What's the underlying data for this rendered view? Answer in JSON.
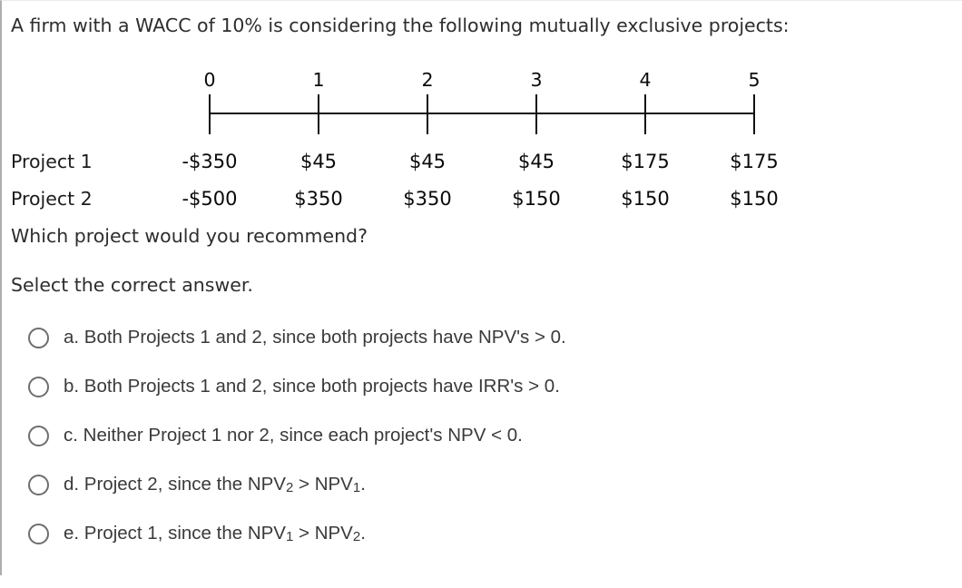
{
  "question": {
    "intro": "A firm with a WACC of 10% is considering the following mutually exclusive projects:",
    "prompt": "Which project would you recommend?",
    "instruction": "Select the correct answer."
  },
  "timeline": {
    "periods": [
      "0",
      "1",
      "2",
      "3",
      "4",
      "5"
    ]
  },
  "cashflows": {
    "rows": [
      {
        "label": "Project 1",
        "values": [
          "-$350",
          "$45",
          "$45",
          "$45",
          "$175",
          "$175"
        ]
      },
      {
        "label": "Project 2",
        "values": [
          "-$500",
          "$350",
          "$350",
          "$150",
          "$150",
          "$150"
        ]
      }
    ]
  },
  "options": [
    {
      "id": "a",
      "selected": false,
      "segments": [
        {
          "text": "a. Both Projects 1 and 2, since both projects have NPV's > 0."
        }
      ]
    },
    {
      "id": "b",
      "selected": false,
      "segments": [
        {
          "text": "b. Both Projects 1 and 2, since both projects have IRR's > 0."
        }
      ]
    },
    {
      "id": "c",
      "selected": false,
      "segments": [
        {
          "text": "c. Neither Project 1 nor 2, since each project's NPV < 0."
        }
      ]
    },
    {
      "id": "d",
      "selected": false,
      "segments": [
        {
          "text": "d. Project 2, since the NPV"
        },
        {
          "sub": "2"
        },
        {
          "text": " > NPV"
        },
        {
          "sub": "1"
        },
        {
          "text": "."
        }
      ]
    },
    {
      "id": "e",
      "selected": false,
      "segments": [
        {
          "text": "e. Project 1, since the NPV"
        },
        {
          "sub": "1"
        },
        {
          "text": " > NPV"
        },
        {
          "sub": "2"
        },
        {
          "text": "."
        }
      ]
    }
  ],
  "colors": {
    "text": "#2d2d2d",
    "timeline_ink": "#111111",
    "option_text": "#3a3a3a",
    "radio_border": "#6e6e6e",
    "page_border": "#aeaeae",
    "background": "#ffffff"
  }
}
